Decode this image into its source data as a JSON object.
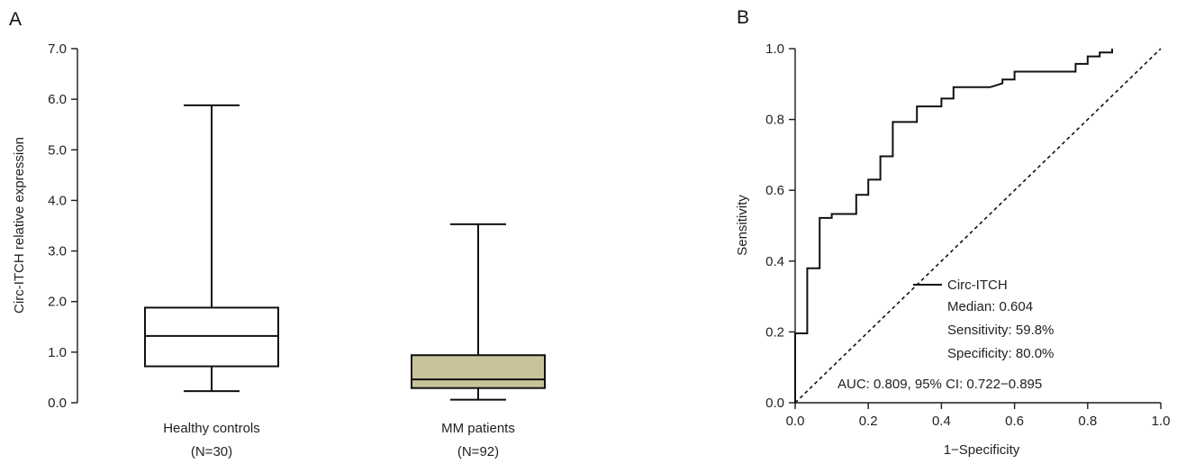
{
  "chart_data": [
    {
      "type": "box",
      "panel_label": "A",
      "ylabel": "Circ-ITCH relative expression",
      "ylim": [
        0,
        7
      ],
      "yticks": [
        0,
        1,
        2,
        3,
        4,
        5,
        6,
        7
      ],
      "ytick_labels": [
        "0.0",
        "1.0",
        "2.0",
        "3.0",
        "4.0",
        "5.0",
        "6.0",
        "7.0"
      ],
      "groups": [
        {
          "name": "Healthy controls",
          "n_label": "(N=30)",
          "min": 0.23,
          "q1": 0.72,
          "median": 1.32,
          "q3": 1.88,
          "max": 5.88,
          "fill": "#ffffff"
        },
        {
          "name": "MM patients",
          "n_label": "(N=92)",
          "min": 0.06,
          "q1": 0.29,
          "median": 0.46,
          "q3": 0.94,
          "max": 3.53,
          "fill": "#c9c39b"
        }
      ]
    },
    {
      "type": "line",
      "panel_label": "B",
      "xlabel": "1−Specificity",
      "ylabel": "Sensitivity",
      "xlim": [
        0,
        1
      ],
      "ylim": [
        0,
        1
      ],
      "xticks": [
        0,
        0.2,
        0.4,
        0.6,
        0.8,
        1.0
      ],
      "xtick_labels": [
        "0.0",
        "0.2",
        "0.4",
        "0.6",
        "0.8",
        "1.0"
      ],
      "yticks": [
        0,
        0.2,
        0.4,
        0.6,
        0.8,
        1.0
      ],
      "ytick_labels": [
        "0.0",
        "0.2",
        "0.4",
        "0.6",
        "0.8",
        "1.0"
      ],
      "series": [
        {
          "name": "Circ-ITCH",
          "style": "solid",
          "x": [
            0,
            0,
            0.033,
            0.033,
            0.067,
            0.067,
            0.1,
            0.1,
            0.167,
            0.167,
            0.2,
            0.2,
            0.233,
            0.233,
            0.267,
            0.267,
            0.333,
            0.333,
            0.4,
            0.4,
            0.433,
            0.433,
            0.533,
            0.567,
            0.567,
            0.6,
            0.6,
            0.767,
            0.767,
            0.8,
            0.8,
            0.833,
            0.833,
            0.867,
            0.867
          ],
          "y": [
            0,
            0.196,
            0.196,
            0.38,
            0.38,
            0.522,
            0.522,
            0.533,
            0.533,
            0.587,
            0.587,
            0.63,
            0.63,
            0.696,
            0.696,
            0.793,
            0.793,
            0.837,
            0.837,
            0.859,
            0.859,
            0.891,
            0.891,
            0.902,
            0.913,
            0.913,
            0.935,
            0.935,
            0.957,
            0.957,
            0.978,
            0.978,
            0.989,
            0.989,
            1.0
          ]
        },
        {
          "name": "",
          "style": "dashed",
          "x": [
            0,
            1
          ],
          "y": [
            0,
            1
          ]
        }
      ],
      "legend": {
        "entry": "Circ-ITCH",
        "lines": [
          "Median: 0.604",
          "Sensitivity: 59.8%",
          "Specificity: 80.0%"
        ]
      },
      "annotation": "AUC: 0.809, 95% CI: 0.722−0.895"
    }
  ]
}
